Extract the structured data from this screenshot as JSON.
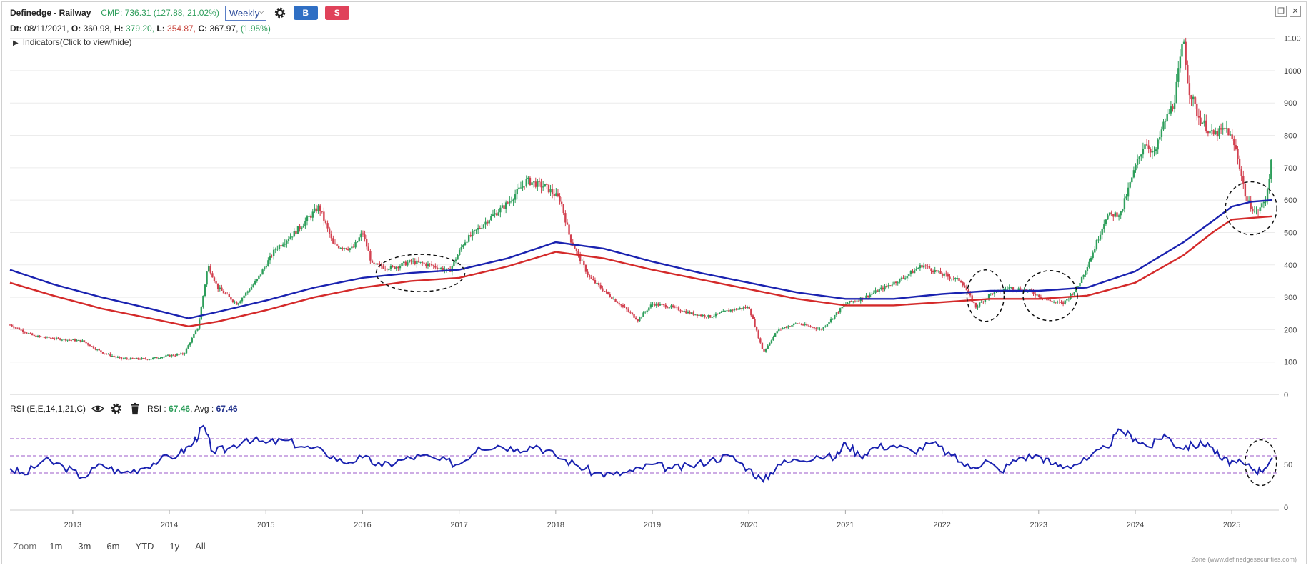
{
  "header": {
    "title": "Definedge - Railway",
    "cmp": "CMP: 736.31 (127.88, 21.02%)",
    "timeframe": "Weekly",
    "buy_label": "B",
    "sell_label": "S"
  },
  "ohlc": {
    "dt_label": "Dt:",
    "dt": "08/11/2021,",
    "o_label": "O:",
    "o": "360.98,",
    "h_label": "H:",
    "h": "379.20,",
    "l_label": "L:",
    "l": "354.87,",
    "c_label": "C:",
    "c": "367.97,",
    "chg": "(1.95%)"
  },
  "indicators_toggle": "Indicators(Click to view/hide)",
  "rsi_header": {
    "name": "RSI (E,E,14,1,21,C)",
    "rsi_label": "RSI :",
    "rsi_value": "67.46",
    "avg_label": ", Avg :",
    "avg_value": "67.46"
  },
  "zoom": {
    "label": "Zoom",
    "options": [
      "1m",
      "3m",
      "6m",
      "YTD",
      "1y",
      "All"
    ]
  },
  "credit": "Zone (www.definedgesecurities.com)",
  "colors": {
    "up": "#2e9e5b",
    "down": "#d2404f",
    "ema_fast": "#1a22b0",
    "ema_slow": "#d42a2a",
    "rsi": "#1a22b0",
    "rsi_levels": "#9b59c9"
  },
  "chart_data": [
    {
      "type": "line",
      "subtype": "candlestick_with_moving_averages",
      "title": "",
      "xlabel": "",
      "ylabel": "",
      "x_ticks": [
        "2013",
        "2014",
        "2015",
        "2016",
        "2017",
        "2018",
        "2019",
        "2020",
        "2021",
        "2022",
        "2023",
        "2024",
        "2025"
      ],
      "y_ticks": [
        0,
        100,
        200,
        300,
        400,
        500,
        600,
        700,
        800,
        900,
        1000,
        1100
      ],
      "ylim": [
        0,
        1130
      ],
      "xlim": [
        2012.35,
        2025.45
      ],
      "grid": "horizontal",
      "price_x": [
        2012.35,
        2012.6,
        2012.9,
        2013.1,
        2013.3,
        2013.5,
        2013.8,
        2014.0,
        2014.15,
        2014.3,
        2014.4,
        2014.5,
        2014.7,
        2014.9,
        2015.1,
        2015.3,
        2015.55,
        2015.7,
        2015.9,
        2016.0,
        2016.1,
        2016.3,
        2016.5,
        2016.7,
        2016.9,
        2017.05,
        2017.3,
        2017.5,
        2017.7,
        2017.9,
        2018.05,
        2018.15,
        2018.35,
        2018.5,
        2018.7,
        2018.85,
        2019.0,
        2019.2,
        2019.4,
        2019.6,
        2019.8,
        2020.0,
        2020.15,
        2020.3,
        2020.5,
        2020.75,
        2021.0,
        2021.2,
        2021.4,
        2021.6,
        2021.8,
        2022.0,
        2022.2,
        2022.35,
        2022.5,
        2022.7,
        2022.9,
        2023.1,
        2023.25,
        2023.4,
        2023.55,
        2023.7,
        2023.85,
        2024.0,
        2024.1,
        2024.2,
        2024.3,
        2024.4,
        2024.5,
        2024.55,
        2024.65,
        2024.8,
        2024.95,
        2025.05,
        2025.15,
        2025.25,
        2025.35,
        2025.42
      ],
      "price_y": [
        215,
        180,
        170,
        165,
        130,
        110,
        110,
        120,
        125,
        210,
        400,
        330,
        280,
        350,
        450,
        500,
        580,
        460,
        450,
        500,
        400,
        390,
        410,
        400,
        380,
        470,
        540,
        590,
        660,
        640,
        600,
        480,
        360,
        320,
        270,
        230,
        280,
        270,
        250,
        240,
        260,
        270,
        130,
        200,
        220,
        200,
        280,
        300,
        330,
        360,
        400,
        370,
        350,
        270,
        310,
        330,
        320,
        290,
        280,
        330,
        430,
        550,
        560,
        700,
        780,
        740,
        840,
        900,
        1100,
        950,
        860,
        800,
        820,
        750,
        600,
        560,
        600,
        736
      ],
      "series": [
        {
          "name": "",
          "x": [
            2012.35,
            2012.8,
            2013.3,
            2013.8,
            2014.2,
            2014.5,
            2015.0,
            2015.5,
            2016.0,
            2016.5,
            2017.0,
            2017.5,
            2018.0,
            2018.5,
            2019.0,
            2019.5,
            2020.0,
            2020.5,
            2021.0,
            2021.5,
            2022.0,
            2022.5,
            2023.0,
            2023.5,
            2024.0,
            2024.5,
            2024.8,
            2025.0,
            2025.2,
            2025.42
          ],
          "values": [
            385,
            340,
            300,
            265,
            235,
            255,
            290,
            330,
            360,
            375,
            385,
            420,
            470,
            450,
            410,
            375,
            345,
            315,
            295,
            295,
            310,
            320,
            320,
            330,
            380,
            470,
            535,
            580,
            595,
            600
          ]
        },
        {
          "name": "",
          "x": [
            2012.35,
            2012.8,
            2013.3,
            2013.8,
            2014.2,
            2014.5,
            2015.0,
            2015.5,
            2016.0,
            2016.5,
            2017.0,
            2017.5,
            2018.0,
            2018.5,
            2019.0,
            2019.5,
            2020.0,
            2020.5,
            2021.0,
            2021.5,
            2022.0,
            2022.5,
            2023.0,
            2023.5,
            2024.0,
            2024.5,
            2024.8,
            2025.0,
            2025.2,
            2025.42
          ],
          "values": [
            345,
            305,
            265,
            235,
            210,
            225,
            260,
            300,
            330,
            350,
            360,
            395,
            440,
            420,
            385,
            355,
            325,
            295,
            275,
            275,
            285,
            295,
            295,
            305,
            345,
            430,
            500,
            540,
            545,
            550
          ]
        }
      ]
    },
    {
      "type": "line",
      "title": "",
      "xlabel": "",
      "ylabel": "",
      "y_ticks": [
        0,
        50
      ],
      "ylim": [
        0,
        100
      ],
      "levels": [
        40,
        60,
        80
      ],
      "x": [
        2012.35,
        2012.5,
        2012.7,
        2012.9,
        2013.1,
        2013.3,
        2013.5,
        2013.7,
        2013.9,
        2014.1,
        2014.25,
        2014.35,
        2014.45,
        2014.6,
        2014.8,
        2015.0,
        2015.2,
        2015.4,
        2015.6,
        2015.8,
        2016.0,
        2016.2,
        2016.4,
        2016.6,
        2016.8,
        2017.0,
        2017.2,
        2017.4,
        2017.6,
        2017.8,
        2018.0,
        2018.2,
        2018.4,
        2018.6,
        2018.8,
        2019.0,
        2019.2,
        2019.4,
        2019.6,
        2019.8,
        2020.0,
        2020.15,
        2020.3,
        2020.5,
        2020.7,
        2020.9,
        2021.0,
        2021.15,
        2021.3,
        2021.5,
        2021.7,
        2021.9,
        2022.1,
        2022.3,
        2022.45,
        2022.6,
        2022.8,
        2023.0,
        2023.15,
        2023.3,
        2023.5,
        2023.7,
        2023.85,
        2024.0,
        2024.15,
        2024.3,
        2024.45,
        2024.6,
        2024.75,
        2024.9,
        2025.05,
        2025.2,
        2025.3,
        2025.42
      ],
      "values": [
        45,
        38,
        55,
        48,
        35,
        50,
        40,
        45,
        55,
        62,
        75,
        95,
        65,
        68,
        80,
        75,
        78,
        70,
        65,
        52,
        58,
        48,
        55,
        60,
        55,
        50,
        70,
        72,
        68,
        72,
        60,
        50,
        40,
        38,
        42,
        50,
        45,
        48,
        55,
        60,
        45,
        30,
        50,
        55,
        60,
        58,
        75,
        60,
        70,
        72,
        65,
        75,
        60,
        45,
        55,
        42,
        58,
        60,
        50,
        48,
        55,
        70,
        90,
        80,
        70,
        85,
        70,
        72,
        75,
        55,
        52,
        46,
        42,
        58
      ]
    }
  ]
}
